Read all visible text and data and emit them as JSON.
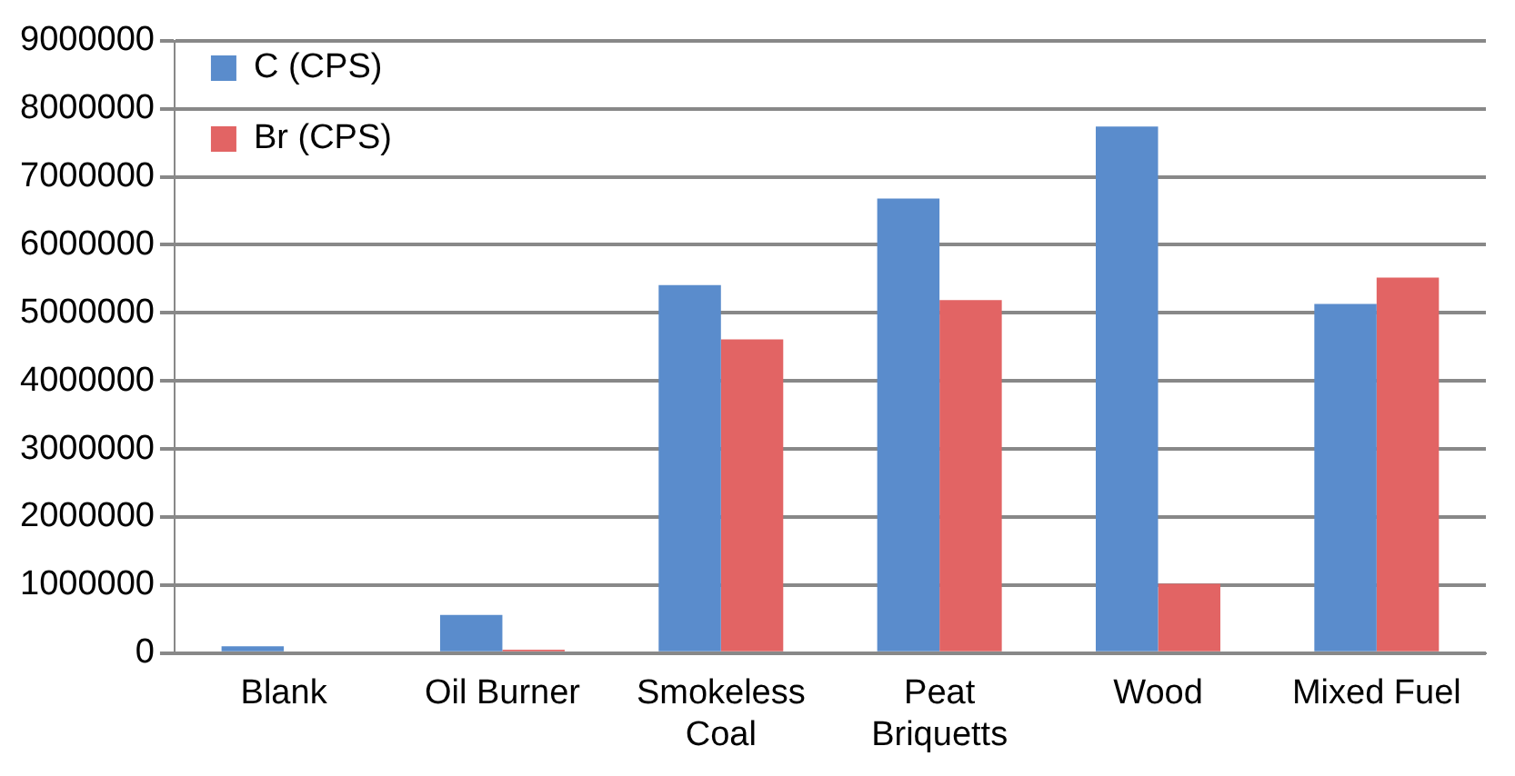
{
  "chart_data": {
    "type": "bar",
    "categories": [
      "Blank",
      "Oil Burner",
      "Smokeless Coal",
      "Peat Briquetts",
      "Wood",
      "Mixed Fuel"
    ],
    "series": [
      {
        "name": "C (CPS)",
        "color": "#5a8ccc",
        "values": [
          100000,
          560000,
          5410000,
          6680000,
          7740000,
          5130000
        ]
      },
      {
        "name": "Br (CPS)",
        "color": "#e26464",
        "values": [
          0,
          50000,
          4610000,
          5190000,
          1020000,
          5520000
        ]
      }
    ],
    "ylim": [
      0,
      9000000
    ],
    "yticks": [
      0,
      1000000,
      2000000,
      3000000,
      4000000,
      5000000,
      6000000,
      7000000,
      8000000,
      9000000
    ],
    "grid": "y",
    "legend": "top left"
  }
}
